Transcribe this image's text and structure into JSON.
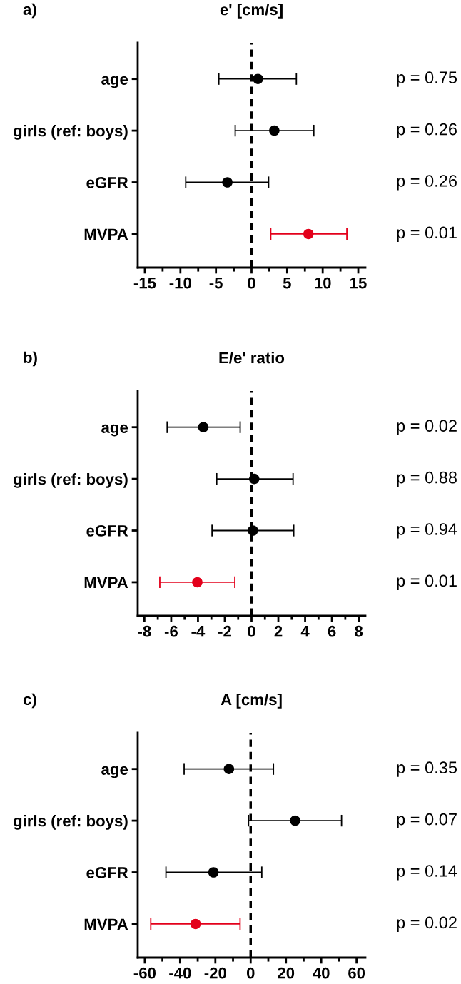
{
  "chart_data": [
    {
      "type": "scatter",
      "orientation": "horizontal",
      "title": "e' [cm/s]",
      "categories": [
        "age",
        "girls (ref: boys)",
        "eGFR",
        "MVPA"
      ],
      "marker": "circle",
      "grid": false,
      "legend": false,
      "values": [
        0.9,
        3.2,
        -3.4,
        8.0
      ],
      "errors": [
        [
          -4.6,
          6.3
        ],
        [
          -2.3,
          8.75
        ],
        [
          -9.25,
          2.4
        ],
        [
          2.7,
          13.4
        ]
      ],
      "colors": [
        "#000000",
        "#000000",
        "#000000",
        "#e3001b"
      ],
      "xlim": [
        -16,
        16
      ],
      "xticks": [
        -15,
        {
          "value": -12.5,
          "label": null
        },
        -10,
        {
          "value": -7.5,
          "label": null
        },
        -5,
        {
          "value": -2.5,
          "label": null
        },
        0,
        {
          "value": 2.5,
          "label": null
        },
        5,
        {
          "value": 7.5,
          "label": null
        },
        10,
        {
          "value": 12.5,
          "label": null
        },
        15
      ],
      "ref_lines": [
        {
          "axis": "x",
          "value": 0,
          "color": "#000000",
          "line_style": "dashed"
        }
      ],
      "annotations": [
        "a)",
        "p = 0.75",
        "p = 0.26",
        "p = 0.26",
        "p = 0.01"
      ]
    },
    {
      "type": "scatter",
      "orientation": "horizontal",
      "title": "E/e' ratio",
      "categories": [
        "age",
        "girls (ref: boys)",
        "eGFR",
        "MVPA"
      ],
      "marker": "circle",
      "grid": false,
      "legend": false,
      "values": [
        -3.6,
        0.2,
        0.1,
        -4.05
      ],
      "errors": [
        [
          -6.3,
          -0.85
        ],
        [
          -2.6,
          3.1
        ],
        [
          -2.95,
          3.15
        ],
        [
          -6.85,
          -1.25
        ]
      ],
      "colors": [
        "#000000",
        "#000000",
        "#000000",
        "#e3001b"
      ],
      "xlim": [
        -8.5,
        8.5
      ],
      "xticks": [
        -8,
        {
          "value": -7,
          "label": null
        },
        -6,
        {
          "value": -5,
          "label": null
        },
        -4,
        {
          "value": -3,
          "label": null
        },
        -2,
        {
          "value": -1,
          "label": null
        },
        0,
        {
          "value": 1,
          "label": null
        },
        2,
        {
          "value": 3,
          "label": null
        },
        4,
        {
          "value": 5,
          "label": null
        },
        6,
        {
          "value": 7,
          "label": null
        },
        8
      ],
      "ref_lines": [
        {
          "axis": "x",
          "value": 0,
          "color": "#000000",
          "line_style": "dashed"
        }
      ],
      "annotations": [
        "b)",
        "p = 0.02",
        "p = 0.88",
        "p = 0.94",
        "p = 0.01"
      ]
    },
    {
      "type": "scatter",
      "orientation": "horizontal",
      "title": "A [cm/s]",
      "categories": [
        "age",
        "girls (ref: boys)",
        "eGFR",
        "MVPA"
      ],
      "marker": "circle",
      "grid": false,
      "legend": false,
      "values": [
        -12.3,
        25.2,
        -21.1,
        -31.2
      ],
      "errors": [
        [
          -37.7,
          12.9
        ],
        [
          -1.2,
          51.5
        ],
        [
          -48.0,
          6.3
        ],
        [
          -56.6,
          -6.0
        ]
      ],
      "colors": [
        "#000000",
        "#000000",
        "#000000",
        "#e3001b"
      ],
      "xlim": [
        -64,
        65
      ],
      "xticks": [
        -60,
        {
          "value": -50,
          "label": null
        },
        -40,
        {
          "value": -30,
          "label": null
        },
        -20,
        {
          "value": -10,
          "label": null
        },
        0,
        {
          "value": 10,
          "label": null
        },
        20,
        {
          "value": 30,
          "label": null
        },
        40,
        {
          "value": 50,
          "label": null
        },
        60
      ],
      "ref_lines": [
        {
          "axis": "x",
          "value": 0,
          "color": "#000000",
          "line_style": "dashed"
        }
      ],
      "annotations": [
        "c)",
        "p = 0.35",
        "p = 0.07",
        "p = 0.14",
        "p = 0.02"
      ]
    }
  ]
}
